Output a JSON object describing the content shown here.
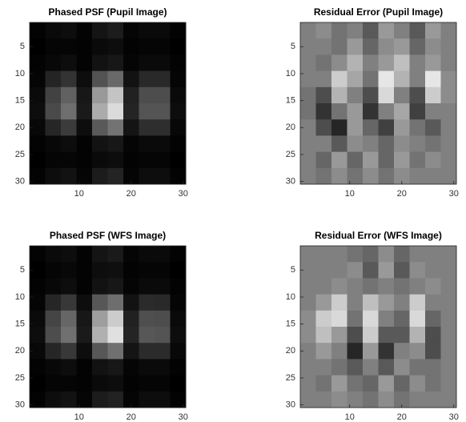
{
  "chart_data": [
    {
      "type": "heatmap",
      "title": "Phased PSF (Pupil Image)",
      "colormap": "gray",
      "clim": [
        0,
        1
      ],
      "x": [
        2,
        5,
        8,
        11,
        14,
        17,
        20,
        23,
        26,
        29
      ],
      "y": [
        2,
        5,
        8,
        11,
        14,
        17,
        20,
        23,
        26,
        29
      ],
      "xlim": [
        0.5,
        30.5
      ],
      "ylim": [
        30.5,
        0.5
      ],
      "xticks": [
        10,
        20,
        30
      ],
      "yticks": [
        5,
        10,
        15,
        20,
        25,
        30
      ],
      "values": [
        [
          0.01,
          0.04,
          0.05,
          0.01,
          0.08,
          0.11,
          0.02,
          0.04,
          0.04,
          0.01
        ],
        [
          0,
          0.02,
          0.02,
          0.01,
          0.04,
          0.05,
          0.01,
          0.02,
          0.02,
          0
        ],
        [
          0.01,
          0.03,
          0.05,
          0.01,
          0.07,
          0.09,
          0.02,
          0.04,
          0.04,
          0.01
        ],
        [
          0.02,
          0.14,
          0.2,
          0.05,
          0.32,
          0.41,
          0.07,
          0.16,
          0.16,
          0.02
        ],
        [
          0.04,
          0.26,
          0.38,
          0.09,
          0.6,
          0.77,
          0.13,
          0.3,
          0.3,
          0.04
        ],
        [
          0.05,
          0.29,
          0.43,
          0.1,
          0.67,
          0.86,
          0.14,
          0.33,
          0.33,
          0.05
        ],
        [
          0.03,
          0.15,
          0.23,
          0.05,
          0.35,
          0.45,
          0.08,
          0.18,
          0.18,
          0.03
        ],
        [
          0.01,
          0.03,
          0.05,
          0.01,
          0.07,
          0.09,
          0.02,
          0.04,
          0.04,
          0.01
        ],
        [
          0,
          0.02,
          0.02,
          0.01,
          0.04,
          0.05,
          0.01,
          0.02,
          0.02,
          0
        ],
        [
          0.01,
          0.05,
          0.07,
          0.02,
          0.11,
          0.14,
          0.02,
          0.05,
          0.05,
          0.01
        ]
      ]
    },
    {
      "type": "heatmap",
      "title": "Residual Error (Pupil Image)",
      "colormap": "gray",
      "clim": [
        0,
        1
      ],
      "x": [
        2,
        5,
        8,
        11,
        14,
        17,
        20,
        23,
        26,
        29
      ],
      "y": [
        2,
        5,
        8,
        11,
        14,
        17,
        20,
        23,
        26,
        29
      ],
      "xlim": [
        0.5,
        30.5
      ],
      "ylim": [
        30.5,
        0.5
      ],
      "xticks": [
        10,
        20,
        30
      ],
      "yticks": [
        5,
        10,
        15,
        20,
        25,
        30
      ],
      "values": [
        [
          0.5,
          0.55,
          0.45,
          0.5,
          0.35,
          0.6,
          0.5,
          0.35,
          0.6,
          0.5
        ],
        [
          0.5,
          0.5,
          0.45,
          0.6,
          0.4,
          0.55,
          0.6,
          0.4,
          0.55,
          0.5
        ],
        [
          0.5,
          0.45,
          0.55,
          0.7,
          0.5,
          0.6,
          0.75,
          0.5,
          0.6,
          0.5
        ],
        [
          0.5,
          0.5,
          0.8,
          0.65,
          0.45,
          0.9,
          0.7,
          0.5,
          0.9,
          0.55
        ],
        [
          0.45,
          0.3,
          0.7,
          0.5,
          0.3,
          0.85,
          0.5,
          0.3,
          0.8,
          0.55
        ],
        [
          0.45,
          0.2,
          0.45,
          0.6,
          0.2,
          0.5,
          0.65,
          0.25,
          0.5,
          0.5
        ],
        [
          0.5,
          0.3,
          0.15,
          0.6,
          0.4,
          0.25,
          0.6,
          0.45,
          0.35,
          0.5
        ],
        [
          0.5,
          0.5,
          0.35,
          0.55,
          0.5,
          0.4,
          0.55,
          0.5,
          0.45,
          0.5
        ],
        [
          0.5,
          0.4,
          0.6,
          0.4,
          0.6,
          0.4,
          0.6,
          0.45,
          0.55,
          0.5
        ],
        [
          0.5,
          0.45,
          0.55,
          0.45,
          0.55,
          0.45,
          0.55,
          0.5,
          0.5,
          0.5
        ]
      ]
    },
    {
      "type": "heatmap",
      "title": "Phased PSF (WFS Image)",
      "colormap": "gray",
      "clim": [
        0,
        1
      ],
      "x": [
        2,
        5,
        8,
        11,
        14,
        17,
        20,
        23,
        26,
        29
      ],
      "y": [
        2,
        5,
        8,
        11,
        14,
        17,
        20,
        23,
        26,
        29
      ],
      "xlim": [
        0.5,
        30.5
      ],
      "ylim": [
        30.5,
        0.5
      ],
      "xticks": [
        10,
        20,
        30
      ],
      "yticks": [
        5,
        10,
        15,
        20,
        25,
        30
      ],
      "values": [
        [
          0.01,
          0.04,
          0.05,
          0.01,
          0.08,
          0.1,
          0.02,
          0.04,
          0.04,
          0.01
        ],
        [
          0,
          0.02,
          0.03,
          0.01,
          0.05,
          0.06,
          0.01,
          0.02,
          0.02,
          0
        ],
        [
          0.01,
          0.03,
          0.05,
          0.01,
          0.07,
          0.09,
          0.02,
          0.04,
          0.04,
          0.01
        ],
        [
          0.02,
          0.15,
          0.22,
          0.05,
          0.34,
          0.43,
          0.07,
          0.17,
          0.16,
          0.02
        ],
        [
          0.04,
          0.27,
          0.4,
          0.09,
          0.62,
          0.8,
          0.13,
          0.31,
          0.3,
          0.04
        ],
        [
          0.05,
          0.3,
          0.44,
          0.1,
          0.69,
          0.88,
          0.14,
          0.34,
          0.33,
          0.05
        ],
        [
          0.03,
          0.15,
          0.22,
          0.05,
          0.34,
          0.44,
          0.08,
          0.17,
          0.17,
          0.03
        ],
        [
          0.01,
          0.03,
          0.05,
          0.01,
          0.07,
          0.09,
          0.02,
          0.04,
          0.04,
          0.01
        ],
        [
          0,
          0.02,
          0.02,
          0.01,
          0.04,
          0.05,
          0.01,
          0.02,
          0.02,
          0
        ],
        [
          0.01,
          0.05,
          0.07,
          0.02,
          0.11,
          0.13,
          0.02,
          0.05,
          0.05,
          0.01
        ]
      ]
    },
    {
      "type": "heatmap",
      "title": "Residual Error (WFS Image)",
      "colormap": "gray",
      "clim": [
        0,
        1
      ],
      "x": [
        2,
        5,
        8,
        11,
        14,
        17,
        20,
        23,
        26,
        29
      ],
      "y": [
        2,
        5,
        8,
        11,
        14,
        17,
        20,
        23,
        26,
        29
      ],
      "xlim": [
        0.5,
        30.5
      ],
      "ylim": [
        30.5,
        0.5
      ],
      "xticks": [
        10,
        20,
        30
      ],
      "yticks": [
        5,
        10,
        15,
        20,
        25,
        30
      ],
      "values": [
        [
          0.5,
          0.5,
          0.5,
          0.45,
          0.4,
          0.55,
          0.4,
          0.5,
          0.5,
          0.5
        ],
        [
          0.5,
          0.5,
          0.5,
          0.55,
          0.35,
          0.6,
          0.35,
          0.55,
          0.5,
          0.5
        ],
        [
          0.5,
          0.5,
          0.55,
          0.5,
          0.45,
          0.5,
          0.45,
          0.5,
          0.55,
          0.5
        ],
        [
          0.5,
          0.6,
          0.8,
          0.5,
          0.75,
          0.6,
          0.5,
          0.8,
          0.5,
          0.5
        ],
        [
          0.55,
          0.8,
          0.85,
          0.45,
          0.85,
          0.5,
          0.4,
          0.85,
          0.4,
          0.5
        ],
        [
          0.55,
          0.75,
          0.6,
          0.3,
          0.8,
          0.35,
          0.35,
          0.7,
          0.3,
          0.5
        ],
        [
          0.5,
          0.6,
          0.5,
          0.15,
          0.6,
          0.2,
          0.5,
          0.55,
          0.3,
          0.5
        ],
        [
          0.5,
          0.5,
          0.45,
          0.35,
          0.5,
          0.35,
          0.55,
          0.45,
          0.45,
          0.5
        ],
        [
          0.5,
          0.45,
          0.6,
          0.45,
          0.4,
          0.6,
          0.4,
          0.55,
          0.45,
          0.5
        ],
        [
          0.5,
          0.5,
          0.55,
          0.5,
          0.45,
          0.55,
          0.45,
          0.5,
          0.5,
          0.5
        ]
      ]
    }
  ]
}
